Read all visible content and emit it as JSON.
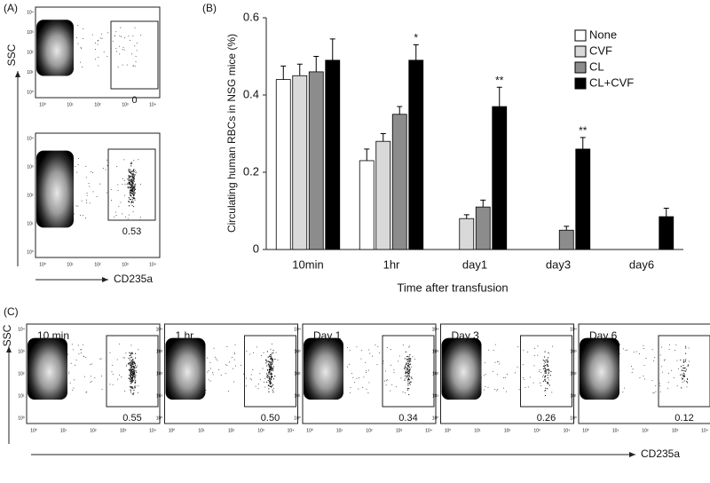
{
  "panel_a": {
    "label": "(A)",
    "y_axis_label": "SSC",
    "x_axis_label": "CD235a",
    "plots": [
      {
        "gate_value": "0"
      },
      {
        "gate_value": "0.53"
      }
    ]
  },
  "chart_data": {
    "type": "bar",
    "panel_label": "(B)",
    "y_axis_label": "Circulating human RBCs in NSG mice (%)",
    "x_axis_label": "Time after transfusion",
    "categories": [
      "10min",
      "1hr",
      "day1",
      "day3",
      "day6"
    ],
    "series": [
      {
        "name": "None",
        "color": "#ffffff",
        "values": [
          0.44,
          0.23,
          null,
          null,
          null
        ],
        "errors": [
          0.035,
          0.03,
          null,
          null,
          null
        ]
      },
      {
        "name": "CVF",
        "color": "#d9d9d9",
        "values": [
          0.45,
          0.28,
          0.08,
          null,
          null
        ],
        "errors": [
          0.03,
          0.02,
          0.01,
          null,
          null
        ]
      },
      {
        "name": "CL",
        "color": "#8c8c8c",
        "values": [
          0.46,
          0.35,
          0.11,
          0.05,
          null
        ],
        "errors": [
          0.04,
          0.02,
          0.018,
          0.01,
          null
        ]
      },
      {
        "name": "CL+CVF",
        "color": "#000000",
        "values": [
          0.49,
          0.49,
          0.37,
          0.26,
          0.085
        ],
        "errors": [
          0.055,
          0.04,
          0.05,
          0.03,
          0.022
        ],
        "significance": [
          null,
          "*",
          "**",
          "**",
          null
        ]
      }
    ],
    "ylim": [
      0,
      0.6
    ],
    "yticks": [
      0,
      0.2,
      0.4,
      0.6
    ],
    "legend": "upper right"
  },
  "panel_c": {
    "label": "(C)",
    "y_axis_label": "SSC",
    "x_axis_label": "CD235a",
    "plots": [
      {
        "title": "10 min",
        "gate_value": "0.55"
      },
      {
        "title": "1 hr",
        "gate_value": "0.50"
      },
      {
        "title": "Day 1",
        "gate_value": "0.34"
      },
      {
        "title": "Day 3",
        "gate_value": "0.26"
      },
      {
        "title": "Day 6",
        "gate_value": "0.12"
      }
    ]
  },
  "flow_axis_ticks": [
    "10⁰",
    "10¹",
    "10²",
    "10³",
    "10⁴"
  ]
}
